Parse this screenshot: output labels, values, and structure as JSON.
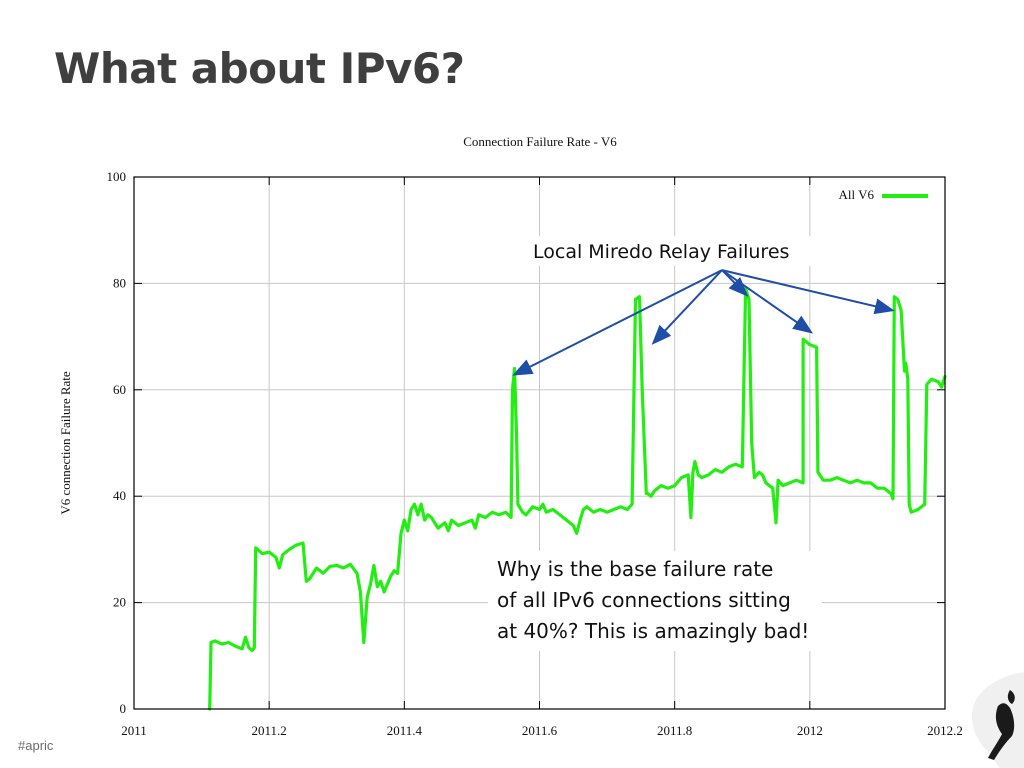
{
  "slide": {
    "title": "What about IPv6?",
    "footer": "#apric"
  },
  "colors": {
    "series": "#22ee11",
    "arrow": "#1f4ea8",
    "grid": "#c8c8c8",
    "title": "#3f3f3f"
  },
  "decoration": {
    "corner_logo_icon": "kiwi-silhouette-icon"
  },
  "annotations": {
    "relay_label": "Local Miredo Relay Failures",
    "relay_targets": [
      [
        2011.565,
        63
      ],
      [
        2011.77,
        69
      ],
      [
        2011.905,
        78
      ],
      [
        2012.0,
        71
      ],
      [
        2012.12,
        75
      ]
    ],
    "relay_origin": [
      2011.87,
      82.5
    ],
    "note_lines": [
      "Why is the base failure rate",
      "of all IPv6 connections sitting",
      "at 40%? This is amazingly bad!"
    ]
  },
  "chart_data": {
    "type": "line",
    "title": "Connection Failure Rate - V6",
    "xlabel": "",
    "ylabel": "V6 connection Failure Rate",
    "xlim": [
      2011,
      2012.2
    ],
    "ylim": [
      0,
      100
    ],
    "xticks": [
      "2011",
      "2011.2",
      "2011.4",
      "2011.6",
      "2011.8",
      "2012",
      "2012.2"
    ],
    "xtick_values": [
      2011,
      2011.2,
      2011.4,
      2011.6,
      2011.8,
      2012,
      2012.2
    ],
    "yticks": [
      "0",
      "20",
      "40",
      "60",
      "80",
      "100"
    ],
    "ytick_values": [
      0,
      20,
      40,
      60,
      80,
      100
    ],
    "grid": true,
    "legend_position": "top-right",
    "series": [
      {
        "name": "All V6",
        "points": [
          [
            2011.112,
            0
          ],
          [
            2011.114,
            12.5
          ],
          [
            2011.12,
            12.8
          ],
          [
            2011.13,
            12.2
          ],
          [
            2011.14,
            12.5
          ],
          [
            2011.15,
            11.8
          ],
          [
            2011.16,
            11.3
          ],
          [
            2011.165,
            13.5
          ],
          [
            2011.17,
            11.5
          ],
          [
            2011.175,
            11.0
          ],
          [
            2011.178,
            11.5
          ],
          [
            2011.18,
            30.3
          ],
          [
            2011.19,
            29.2
          ],
          [
            2011.2,
            29.5
          ],
          [
            2011.21,
            28.5
          ],
          [
            2011.215,
            26.5
          ],
          [
            2011.22,
            29.0
          ],
          [
            2011.23,
            30.0
          ],
          [
            2011.24,
            30.8
          ],
          [
            2011.25,
            31.2
          ],
          [
            2011.255,
            24.0
          ],
          [
            2011.26,
            24.5
          ],
          [
            2011.27,
            26.5
          ],
          [
            2011.28,
            25.5
          ],
          [
            2011.29,
            26.8
          ],
          [
            2011.3,
            27.0
          ],
          [
            2011.31,
            26.5
          ],
          [
            2011.32,
            27.2
          ],
          [
            2011.33,
            25.5
          ],
          [
            2011.335,
            22.0
          ],
          [
            2011.34,
            12.5
          ],
          [
            2011.345,
            21.0
          ],
          [
            2011.35,
            23.5
          ],
          [
            2011.355,
            27.0
          ],
          [
            2011.36,
            23.0
          ],
          [
            2011.365,
            24.0
          ],
          [
            2011.37,
            22.0
          ],
          [
            2011.375,
            23.5
          ],
          [
            2011.38,
            25.0
          ],
          [
            2011.385,
            26.0
          ],
          [
            2011.39,
            25.5
          ],
          [
            2011.395,
            33.0
          ],
          [
            2011.4,
            35.5
          ],
          [
            2011.405,
            33.5
          ],
          [
            2011.41,
            37.5
          ],
          [
            2011.415,
            38.5
          ],
          [
            2011.42,
            36.5
          ],
          [
            2011.425,
            38.5
          ],
          [
            2011.43,
            35.5
          ],
          [
            2011.435,
            36.5
          ],
          [
            2011.44,
            36.0
          ],
          [
            2011.45,
            34.0
          ],
          [
            2011.46,
            35.0
          ],
          [
            2011.465,
            33.5
          ],
          [
            2011.47,
            35.5
          ],
          [
            2011.48,
            34.5
          ],
          [
            2011.49,
            35.0
          ],
          [
            2011.5,
            35.5
          ],
          [
            2011.505,
            34.0
          ],
          [
            2011.51,
            36.5
          ],
          [
            2011.52,
            36.0
          ],
          [
            2011.53,
            37.0
          ],
          [
            2011.54,
            36.5
          ],
          [
            2011.55,
            37.0
          ],
          [
            2011.558,
            36.0
          ],
          [
            2011.56,
            60.0
          ],
          [
            2011.563,
            64.0
          ],
          [
            2011.566,
            52.0
          ],
          [
            2011.568,
            38.5
          ],
          [
            2011.575,
            37.0
          ],
          [
            2011.58,
            36.5
          ],
          [
            2011.59,
            38.0
          ],
          [
            2011.6,
            37.5
          ],
          [
            2011.605,
            38.5
          ],
          [
            2011.61,
            37.0
          ],
          [
            2011.62,
            37.5
          ],
          [
            2011.63,
            36.5
          ],
          [
            2011.64,
            35.5
          ],
          [
            2011.65,
            34.5
          ],
          [
            2011.655,
            33.0
          ],
          [
            2011.66,
            35.5
          ],
          [
            2011.665,
            37.5
          ],
          [
            2011.67,
            38.0
          ],
          [
            2011.68,
            37.0
          ],
          [
            2011.69,
            37.5
          ],
          [
            2011.7,
            37.0
          ],
          [
            2011.71,
            37.5
          ],
          [
            2011.72,
            38.0
          ],
          [
            2011.73,
            37.5
          ],
          [
            2011.737,
            38.5
          ],
          [
            2011.742,
            77.0
          ],
          [
            2011.748,
            77.5
          ],
          [
            2011.752,
            60.0
          ],
          [
            2011.758,
            40.5
          ],
          [
            2011.76,
            40.5
          ],
          [
            2011.765,
            40.0
          ],
          [
            2011.77,
            41.0
          ],
          [
            2011.78,
            42.0
          ],
          [
            2011.79,
            41.5
          ],
          [
            2011.8,
            42.0
          ],
          [
            2011.81,
            43.5
          ],
          [
            2011.82,
            44.0
          ],
          [
            2011.824,
            36.0
          ],
          [
            2011.827,
            44.5
          ],
          [
            2011.83,
            46.5
          ],
          [
            2011.835,
            44.0
          ],
          [
            2011.84,
            43.5
          ],
          [
            2011.85,
            44.0
          ],
          [
            2011.86,
            45.0
          ],
          [
            2011.87,
            44.5
          ],
          [
            2011.88,
            45.5
          ],
          [
            2011.89,
            46.0
          ],
          [
            2011.9,
            45.5
          ],
          [
            2011.905,
            79.0
          ],
          [
            2011.91,
            77.0
          ],
          [
            2011.914,
            50.0
          ],
          [
            2011.918,
            43.5
          ],
          [
            2011.925,
            44.5
          ],
          [
            2011.93,
            44.0
          ],
          [
            2011.935,
            42.5
          ],
          [
            2011.94,
            42.0
          ],
          [
            2011.945,
            41.5
          ],
          [
            2011.95,
            35.0
          ],
          [
            2011.953,
            43.0
          ],
          [
            2011.96,
            42.0
          ],
          [
            2011.97,
            42.5
          ],
          [
            2011.98,
            43.0
          ],
          [
            2011.99,
            42.5
          ],
          [
            2011.99,
            69.5
          ],
          [
            2011.995,
            69.0
          ],
          [
            2012.0,
            68.5
          ],
          [
            2012.01,
            68.0
          ],
          [
            2012.012,
            44.5
          ],
          [
            2012.02,
            43.0
          ],
          [
            2012.03,
            43.0
          ],
          [
            2012.04,
            43.5
          ],
          [
            2012.05,
            43.0
          ],
          [
            2012.06,
            42.5
          ],
          [
            2012.07,
            43.0
          ],
          [
            2012.08,
            42.5
          ],
          [
            2012.09,
            42.5
          ],
          [
            2012.1,
            41.5
          ],
          [
            2012.11,
            41.5
          ],
          [
            2012.12,
            40.5
          ],
          [
            2012.123,
            39.5
          ],
          [
            2012.125,
            77.5
          ],
          [
            2012.13,
            77.0
          ],
          [
            2012.135,
            75.0
          ],
          [
            2012.14,
            63.5
          ],
          [
            2012.142,
            65.0
          ],
          [
            2012.145,
            62.0
          ],
          [
            2012.147,
            38.5
          ],
          [
            2012.15,
            37.0
          ],
          [
            2012.16,
            37.5
          ],
          [
            2012.17,
            38.5
          ],
          [
            2012.173,
            61.0
          ],
          [
            2012.18,
            62.0
          ],
          [
            2012.19,
            61.5
          ],
          [
            2012.195,
            60.5
          ],
          [
            2012.2,
            62.5
          ]
        ]
      }
    ]
  }
}
